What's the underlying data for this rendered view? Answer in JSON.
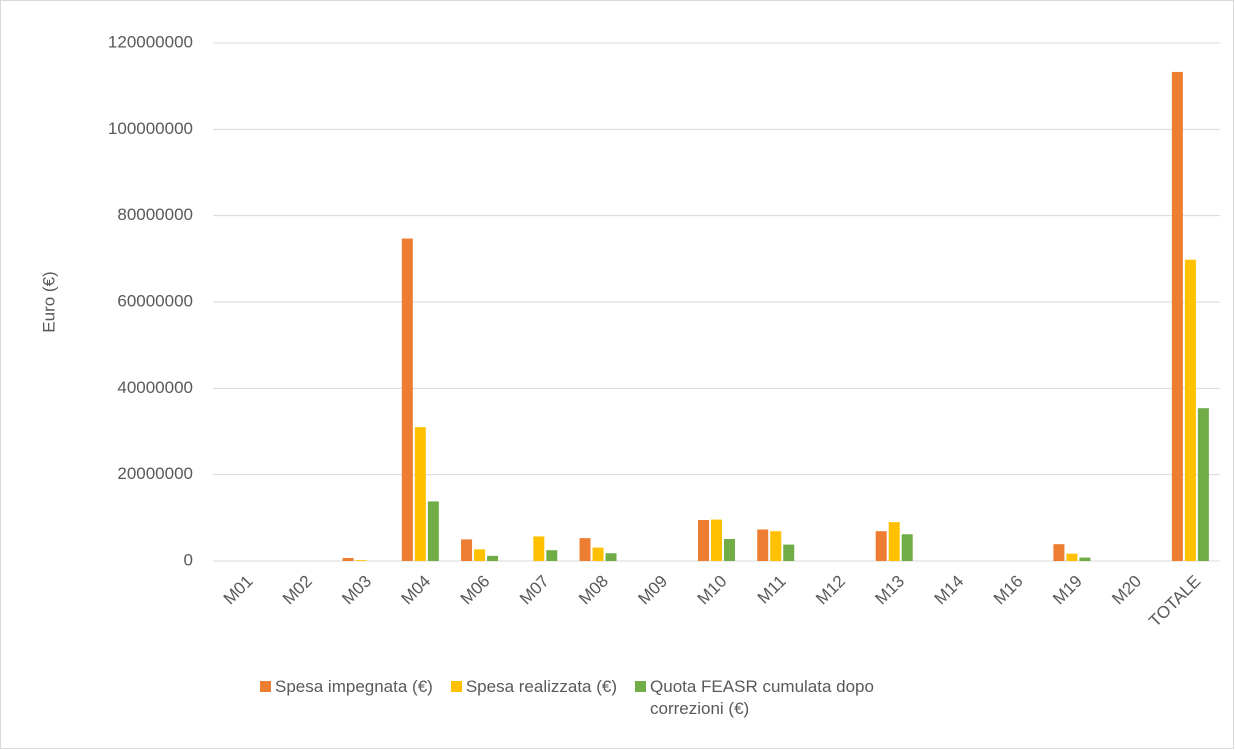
{
  "chart_data": {
    "type": "bar",
    "ylabel": "Euro (€)",
    "categories": [
      "M01",
      "M02",
      "M03",
      "M04",
      "M06",
      "M07",
      "M08",
      "M09",
      "M10",
      "M11",
      "M12",
      "M13",
      "M14",
      "M16",
      "M19",
      "M20",
      "TOTALE"
    ],
    "series": [
      {
        "name": "Spesa impegnata (€)",
        "color": "#ED7D31",
        "values": [
          0,
          0,
          700000,
          74700000,
          5000000,
          0,
          5300000,
          0,
          9500000,
          7300000,
          0,
          6900000,
          0,
          0,
          3900000,
          0,
          113300000
        ]
      },
      {
        "name": "Spesa realizzata (€)",
        "color": "#FFC000",
        "values": [
          0,
          0,
          200000,
          31000000,
          2700000,
          5700000,
          3100000,
          0,
          9600000,
          6900000,
          0,
          9000000,
          0,
          0,
          1700000,
          0,
          69800000
        ]
      },
      {
        "name": "Quota FEASR cumulata dopo correzioni (€)",
        "color": "#70AD47",
        "values": [
          0,
          0,
          0,
          13800000,
          1200000,
          2500000,
          1800000,
          0,
          5100000,
          3800000,
          0,
          6200000,
          0,
          0,
          800000,
          0,
          35400000
        ]
      }
    ],
    "ylim": [
      0,
      120000000
    ],
    "yticks": [
      0,
      20000000,
      40000000,
      60000000,
      80000000,
      100000000,
      120000000
    ],
    "grid": true
  }
}
